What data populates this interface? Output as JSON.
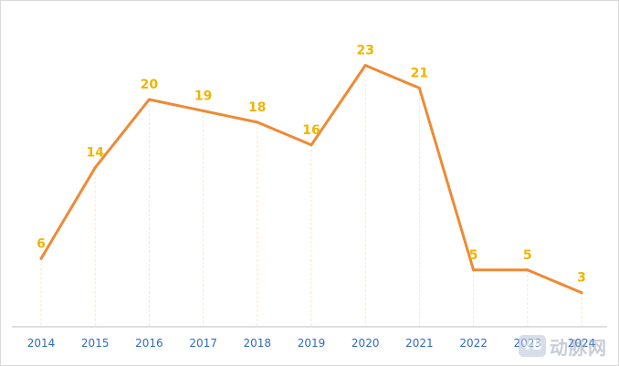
{
  "chart_data": {
    "type": "line",
    "categories": [
      "2014",
      "2015",
      "2016",
      "2017",
      "2018",
      "2019",
      "2020",
      "2021",
      "2022",
      "2023",
      "2024"
    ],
    "values": [
      6,
      14,
      20,
      19,
      18,
      16,
      23,
      21,
      5,
      5,
      3
    ],
    "title": "",
    "xlabel": "",
    "ylabel": "",
    "ylim": [
      0,
      26
    ],
    "grid": "vertical dashed per category",
    "legend": "none",
    "colors": {
      "line": "#ee8a35",
      "labels": "#f0b400",
      "ticks": "#2e6bc1",
      "gridlines": "#fbe6c8",
      "axis": "#bfbfbf"
    }
  },
  "watermark": {
    "logo_text": "VB",
    "text": "动脉网"
  }
}
